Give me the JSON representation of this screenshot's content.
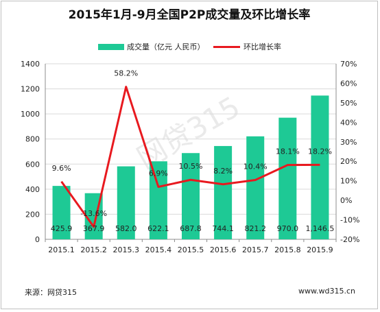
{
  "chart_data": {
    "type": "bar",
    "title": "2015年1月-9月全国P2P成交量及环比增长率",
    "categories": [
      "2015.1",
      "2015.2",
      "2015.3",
      "2015.4",
      "2015.5",
      "2015.6",
      "2015.7",
      "2015.8",
      "2015.9"
    ],
    "series": [
      {
        "name": "成交量（亿元 人民币）",
        "type": "bar",
        "axis": "left",
        "color": "#1ec995",
        "values": [
          425.9,
          367.9,
          582.0,
          622.1,
          687.8,
          744.1,
          821.2,
          970.0,
          1146.5
        ],
        "labels": [
          "425.9",
          "367.9",
          "582.0",
          "622.1",
          "687.8",
          "744.1",
          "821.2",
          "970.0",
          "1,146.5"
        ]
      },
      {
        "name": "环比增长率",
        "type": "line",
        "axis": "right",
        "color": "#e8191f",
        "values": [
          9.6,
          -13.6,
          58.2,
          6.9,
          10.5,
          8.2,
          10.4,
          18.1,
          18.2
        ],
        "labels": [
          "9.6%",
          "-13.6%",
          "58.2%",
          "6.9%",
          "10.5%",
          "8.2%",
          "10.4%",
          "18.1%",
          "18.2%"
        ]
      }
    ],
    "left_axis": {
      "ylim": [
        0,
        1400
      ],
      "ticks": [
        "0",
        "200",
        "400",
        "600",
        "800",
        "1000",
        "1200",
        "1400"
      ]
    },
    "right_axis": {
      "ylim": [
        -20,
        70
      ],
      "ticks": [
        "-20%",
        "-10%",
        "0%",
        "10%",
        "20%",
        "30%",
        "40%",
        "50%",
        "60%",
        "70%"
      ]
    },
    "grid": true,
    "legend": "top-center",
    "watermark": "网贷315"
  },
  "footer": {
    "source": "来源：网贷315",
    "url": "www.wd315.cn"
  }
}
